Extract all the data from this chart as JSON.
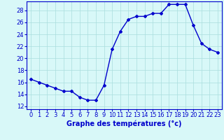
{
  "hours": [
    0,
    1,
    2,
    3,
    4,
    5,
    6,
    7,
    8,
    9,
    10,
    11,
    12,
    13,
    14,
    15,
    16,
    17,
    18,
    19,
    20,
    21,
    22,
    23
  ],
  "temperatures": [
    16.5,
    16.0,
    15.5,
    15.0,
    14.5,
    14.5,
    13.5,
    13.0,
    13.0,
    15.5,
    21.5,
    24.5,
    26.5,
    27.0,
    27.0,
    27.5,
    27.5,
    29.0,
    29.0,
    29.0,
    25.5,
    22.5,
    21.5,
    21.0
  ],
  "line_color": "#0000cc",
  "marker": "D",
  "marker_size": 2.0,
  "bg_color": "#d8f8f8",
  "grid_color": "#aadddd",
  "xlabel": "Graphe des températures (°c)",
  "xlabel_color": "#0000cc",
  "tick_label_color": "#0000cc",
  "axis_label_fontsize": 7,
  "tick_fontsize": 6,
  "ylim": [
    11.5,
    29.5
  ],
  "yticks": [
    12,
    14,
    16,
    18,
    20,
    22,
    24,
    26,
    28
  ],
  "xlim": [
    -0.5,
    23.5
  ],
  "xticks": [
    0,
    1,
    2,
    3,
    4,
    5,
    6,
    7,
    8,
    9,
    10,
    11,
    12,
    13,
    14,
    15,
    16,
    17,
    18,
    19,
    20,
    21,
    22,
    23
  ]
}
